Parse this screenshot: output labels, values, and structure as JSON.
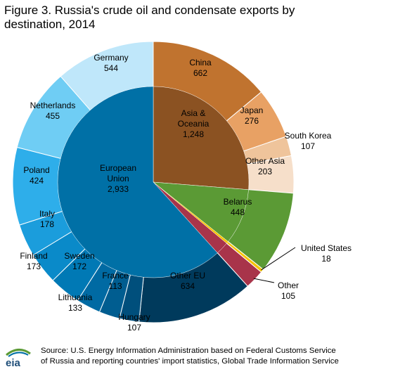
{
  "title": {
    "line1": "Figure 3. Russia's crude oil and condensate exports by",
    "line2": "destination, 2014"
  },
  "chart_data": {
    "type": "pie",
    "unit": "",
    "inner": [
      {
        "name": "Asia &",
        "name2": "Oceania",
        "value": 1248,
        "value_label": "1,248",
        "color": "#8b5222"
      },
      {
        "name": "Belarus",
        "value": 448,
        "value_label": "448",
        "color": "#5b9a35"
      },
      {
        "name": "United States",
        "value": 18,
        "value_label": "18",
        "color": "#f5c400"
      },
      {
        "name": "Other",
        "value": 105,
        "value_label": "105",
        "color": "#a8344a"
      },
      {
        "name": "European",
        "name2": "Union",
        "value": 2933,
        "value_label": "2,933",
        "color": "#0070a6"
      }
    ],
    "outer": [
      {
        "name": "China",
        "value": 662,
        "value_label": "662",
        "color": "#c0732f"
      },
      {
        "name": "Japan",
        "value": 276,
        "value_label": "276",
        "color": "#e8a164"
      },
      {
        "name": "South Korea",
        "value": 107,
        "value_label": "107",
        "color": "#efc49b"
      },
      {
        "name": "Other Asia",
        "value": 203,
        "value_label": "203",
        "color": "#f6dfca"
      },
      {
        "name": "Belarus",
        "value": 448,
        "value_label": "448",
        "color": "#5b9a35"
      },
      {
        "name": "United States",
        "value": 18,
        "value_label": "18",
        "color": "#f5c400"
      },
      {
        "name": "Other",
        "value": 105,
        "value_label": "105",
        "color": "#a8344a"
      },
      {
        "name": "Other EU",
        "value": 634,
        "value_label": "634",
        "color": "#003a5c"
      },
      {
        "name": "Hungary",
        "value": 107,
        "value_label": "107",
        "color": "#004f7c"
      },
      {
        "name": "France",
        "value": 113,
        "value_label": "113",
        "color": "#005d90"
      },
      {
        "name": "Lithuania",
        "value": 133,
        "value_label": "133",
        "color": "#006aa3"
      },
      {
        "name": "Sweden",
        "value": 172,
        "value_label": "172",
        "color": "#0079b5"
      },
      {
        "name": "Finland",
        "value": 173,
        "value_label": "173",
        "color": "#0a8ac9"
      },
      {
        "name": "Italy",
        "value": 178,
        "value_label": "178",
        "color": "#1b9ddc"
      },
      {
        "name": "Poland",
        "value": 424,
        "value_label": "424",
        "color": "#2eaeea"
      },
      {
        "name": "Netherlands",
        "value": 455,
        "value_label": "455",
        "color": "#6fcdf4"
      },
      {
        "name": "Germany",
        "value": 544,
        "value_label": "544",
        "color": "#bfe7fa"
      }
    ]
  },
  "footer": {
    "logo_text": "eia",
    "source_line1": "Source: U.S. Energy Information Administration based on Federal Customs Service",
    "source_line2": "of Russia and reporting countries' import statistics, Global Trade Information Service"
  }
}
